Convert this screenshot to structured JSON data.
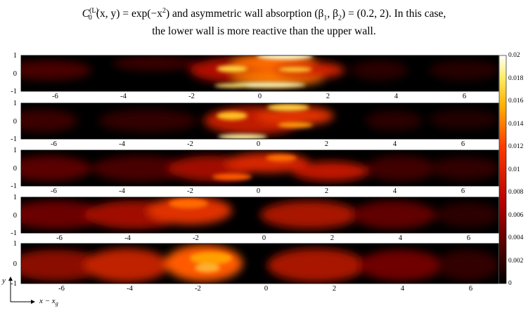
{
  "caption": {
    "line1_math": "C",
    "line1_super": "(L)",
    "line1_sub": "0",
    "line1_rest": "(x, y) = exp(−x",
    "line1_rest2": ") and asymmetric wall absorption (β",
    "line1_rest3": ", β",
    "line1_rest4": ") = (0.2, 2). In this case,",
    "line2": "the lower wall is more reactive than the upper wall."
  },
  "y_ticks": [
    "1",
    "0",
    "-1"
  ],
  "colorbar": {
    "ticks": [
      "0.02",
      "0.018",
      "0.016",
      "0.014",
      "0.012",
      "0.01",
      "0.008",
      "0.006",
      "0.004",
      "0.002",
      "0"
    ],
    "range": [
      0,
      0.02
    ],
    "colormap": "hot"
  },
  "axes_labels": {
    "x": "x − x",
    "x_sub": "g",
    "y": "y"
  },
  "panels": [
    {
      "x_ticks": [
        "-6",
        "-4",
        "-2",
        "0",
        "2",
        "4",
        "6"
      ]
    },
    {
      "x_ticks": [
        "-6",
        "-4",
        "-2",
        "0",
        "2",
        "4",
        "6"
      ]
    },
    {
      "x_ticks": [
        "-6",
        "-4",
        "-2",
        "0",
        "2",
        "4",
        "6"
      ]
    },
    {
      "x_ticks": [
        "-6",
        "-4",
        "-2",
        "0",
        "2",
        "4",
        "6"
      ]
    },
    {
      "x_ticks": [
        "-6",
        "-4",
        "-2",
        "0",
        "2",
        "4",
        "6"
      ]
    }
  ],
  "chart_data": {
    "type": "heatmap",
    "x_range": [
      -7,
      7
    ],
    "y_range": [
      -1,
      1
    ],
    "value_range": [
      0,
      0.02
    ],
    "panels": 5
  }
}
